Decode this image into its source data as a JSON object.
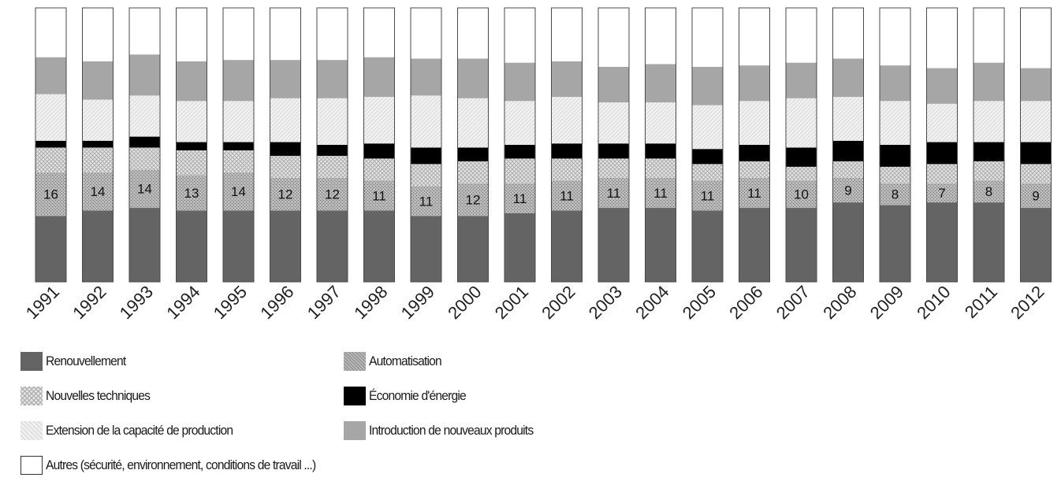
{
  "chart_data": {
    "type": "bar",
    "stacked": true,
    "normalized": true,
    "title": "",
    "xlabel": "",
    "ylabel": "",
    "ylim": [
      0,
      100
    ],
    "categories": [
      "1991",
      "1992",
      "1993",
      "1994",
      "1995",
      "1996",
      "1997",
      "1998",
      "1999",
      "2000",
      "2001",
      "2002",
      "2003",
      "2004",
      "2005",
      "2006",
      "2007",
      "2008",
      "2009",
      "2010",
      "2011",
      "2012"
    ],
    "series": [
      {
        "name": "Renouvellement",
        "color": "#646464",
        "pattern": "solid",
        "values": [
          24,
          26,
          27,
          26,
          26,
          26,
          26,
          26,
          24,
          24,
          25,
          26,
          27,
          27,
          26,
          27,
          27,
          29,
          28,
          29,
          29,
          27
        ]
      },
      {
        "name": "Automatisation",
        "color": "#aaaaaa",
        "pattern": "dots",
        "values": [
          16,
          14,
          14,
          13,
          14,
          12,
          12,
          11,
          11,
          12,
          11,
          11,
          11,
          11,
          11,
          11,
          10,
          9,
          8,
          7,
          8,
          9
        ]
      },
      {
        "name": "Nouvelles techniques",
        "color": "#d2d2d2",
        "pattern": "crosshatch",
        "values": [
          9,
          9,
          8,
          9,
          8,
          8,
          8,
          8,
          8,
          8,
          9,
          8,
          7,
          7,
          6,
          6,
          5,
          6,
          6,
          7,
          7,
          7
        ]
      },
      {
        "name": "Économie d'énergie",
        "color": "#000000",
        "pattern": "solid",
        "values": [
          2.5,
          2.5,
          4,
          3,
          3,
          5,
          4,
          5.5,
          6,
          5,
          5,
          5.5,
          5.5,
          5.5,
          5.5,
          6,
          7,
          7.5,
          8,
          8,
          7,
          8
        ]
      },
      {
        "name": "Extension de la capacité de production",
        "color": "#eaeaea",
        "pattern": "lines",
        "values": [
          17,
          15,
          15,
          15,
          15,
          16,
          17,
          17,
          19,
          18,
          16,
          17,
          15,
          15,
          16,
          16,
          18,
          16,
          16,
          14,
          15,
          15
        ]
      },
      {
        "name": "Introduction de nouveaux produits",
        "color": "#a6a6a6",
        "pattern": "solid",
        "values": [
          13.5,
          14,
          15,
          14.5,
          15,
          14,
          14,
          14.5,
          13.5,
          14.5,
          14,
          13,
          13,
          14,
          14,
          13,
          13,
          14,
          13,
          13,
          14,
          12
        ]
      },
      {
        "name": "Autres (sécurité, environnement, conditions de travail ...)",
        "color": "#ffffff",
        "pattern": "solid",
        "values": [
          18,
          19.5,
          17,
          19.5,
          19,
          19,
          19,
          18,
          18.5,
          18.5,
          20,
          19.5,
          21.5,
          20.5,
          21.5,
          21,
          20,
          18.5,
          21,
          22,
          20,
          22
        ]
      }
    ],
    "labeled_series": "Automatisation",
    "legend_position": "bottom"
  },
  "legend": {
    "items": [
      {
        "label": "Renouvellement",
        "color": "#646464",
        "pattern": "solid"
      },
      {
        "label": "Automatisation",
        "color": "#aaaaaa",
        "pattern": "dots"
      },
      {
        "label": "Nouvelles techniques",
        "color": "#d2d2d2",
        "pattern": "crosshatch"
      },
      {
        "label": "Économie d'énergie",
        "color": "#000000",
        "pattern": "solid"
      },
      {
        "label": "Extension de la capacité de production",
        "color": "#eaeaea",
        "pattern": "lines"
      },
      {
        "label": "Introduction de nouveaux produits",
        "color": "#a6a6a6",
        "pattern": "solid"
      },
      {
        "label": "Autres (sécurité, environnement, conditions de travail ...)",
        "color": "#ffffff",
        "pattern": "solid"
      }
    ]
  }
}
